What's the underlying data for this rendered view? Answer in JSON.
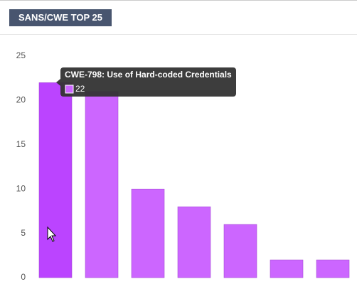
{
  "header": {
    "title": "SANS/CWE TOP 25"
  },
  "chart_data": {
    "type": "bar",
    "categories": [
      "CWE-798: Use of Hard-coded Credentials",
      null,
      null,
      null,
      null,
      null,
      null
    ],
    "values": [
      22,
      21,
      10,
      8,
      6,
      2,
      2
    ],
    "color": "#cc66ff",
    "highlight_color": "#bb44ff",
    "ylim": [
      0,
      25
    ],
    "yticks": [
      0,
      5,
      10,
      15,
      20,
      25
    ],
    "grid": false
  }
}
